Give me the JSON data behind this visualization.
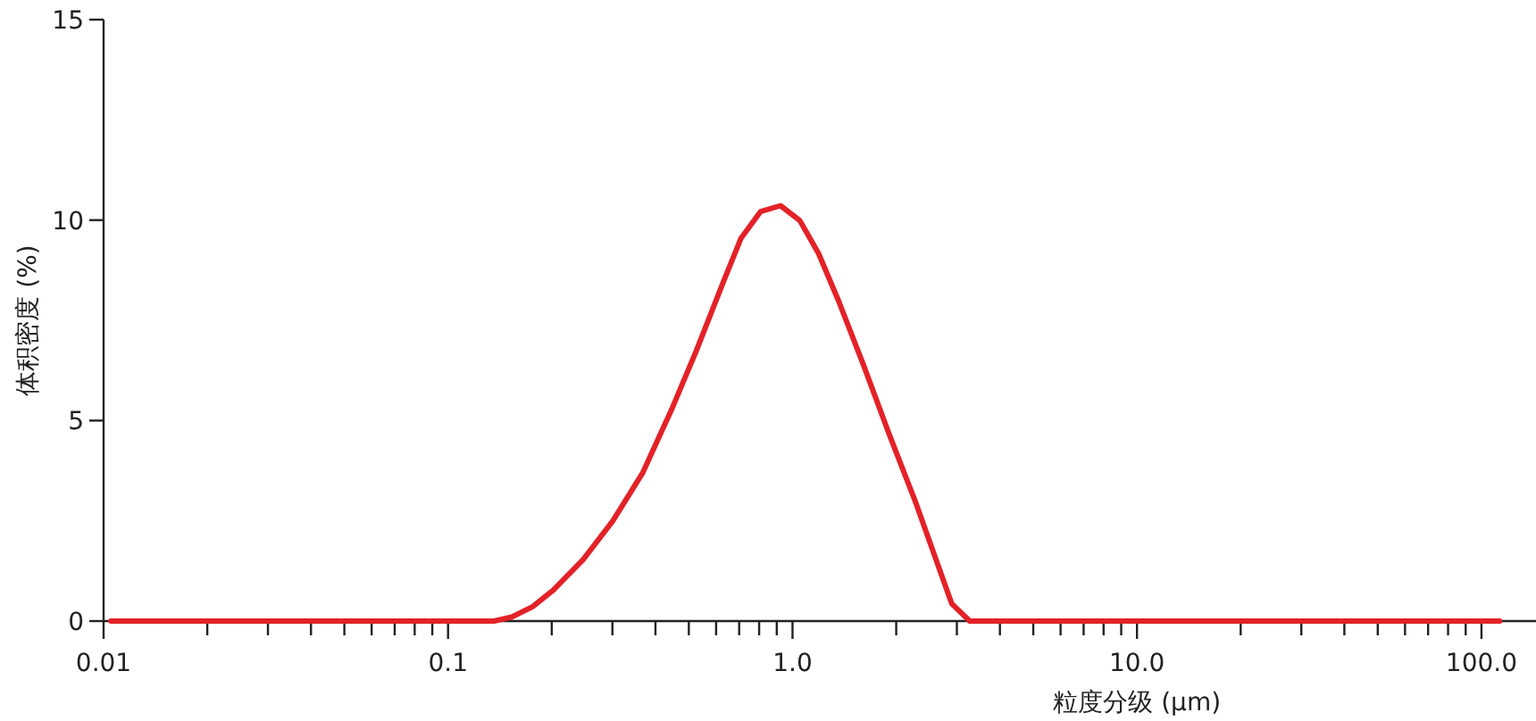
{
  "chart_data": {
    "type": "line",
    "xlabel": "粒度分级 (µm)",
    "ylabel": "体积密度 (%)",
    "log": "x",
    "xlim": [
      0.01,
      144
    ],
    "ylim": [
      0,
      15
    ],
    "xticks": [
      0.01,
      {
        "value": 0.02,
        "label": null
      },
      {
        "value": 0.03,
        "label": null
      },
      {
        "value": 0.04,
        "label": null
      },
      {
        "value": 0.05,
        "label": null
      },
      {
        "value": 0.06,
        "label": null
      },
      {
        "value": 0.07,
        "label": null
      },
      {
        "value": 0.08,
        "label": null
      },
      {
        "value": 0.09,
        "label": null
      },
      0.1,
      {
        "value": 0.2,
        "label": null
      },
      {
        "value": 0.3,
        "label": null
      },
      {
        "value": 0.4,
        "label": null
      },
      {
        "value": 0.5,
        "label": null
      },
      {
        "value": 0.6,
        "label": null
      },
      {
        "value": 0.7,
        "label": null
      },
      {
        "value": 0.8,
        "label": null
      },
      {
        "value": 0.9,
        "label": null
      },
      {
        "value": 1,
        "label": "1.0"
      },
      {
        "value": 2,
        "label": null
      },
      {
        "value": 3,
        "label": null
      },
      {
        "value": 4,
        "label": null
      },
      {
        "value": 5,
        "label": null
      },
      {
        "value": 6,
        "label": null
      },
      {
        "value": 7,
        "label": null
      },
      {
        "value": 8,
        "label": null
      },
      {
        "value": 9,
        "label": null
      },
      {
        "value": 10,
        "label": "10.0"
      },
      {
        "value": 20,
        "label": null
      },
      {
        "value": 30,
        "label": null
      },
      {
        "value": 40,
        "label": null
      },
      {
        "value": 50,
        "label": null
      },
      {
        "value": 60,
        "label": null
      },
      {
        "value": 70,
        "label": null
      },
      {
        "value": 80,
        "label": null
      },
      {
        "value": 90,
        "label": null
      },
      {
        "value": 100,
        "label": "100.0"
      }
    ],
    "yticks": [
      0,
      5,
      10,
      15
    ],
    "grid": false,
    "series": [
      {
        "color": "#e32228",
        "x": [
          0.0105,
          0.0987,
          0.136,
          0.153,
          0.176,
          0.202,
          0.247,
          0.301,
          0.367,
          0.448,
          0.525,
          0.628,
          0.708,
          0.807,
          0.923,
          1.05,
          1.19,
          1.36,
          1.6,
          1.91,
          2.28,
          2.9,
          3.27,
          113
        ],
        "values": [
          0,
          0,
          0,
          0.1,
          0.36,
          0.77,
          1.54,
          2.5,
          3.69,
          5.32,
          6.73,
          8.43,
          9.54,
          10.21,
          10.36,
          9.99,
          9.17,
          7.99,
          6.43,
          4.65,
          2.95,
          0.43,
          0,
          0
        ]
      }
    ]
  }
}
